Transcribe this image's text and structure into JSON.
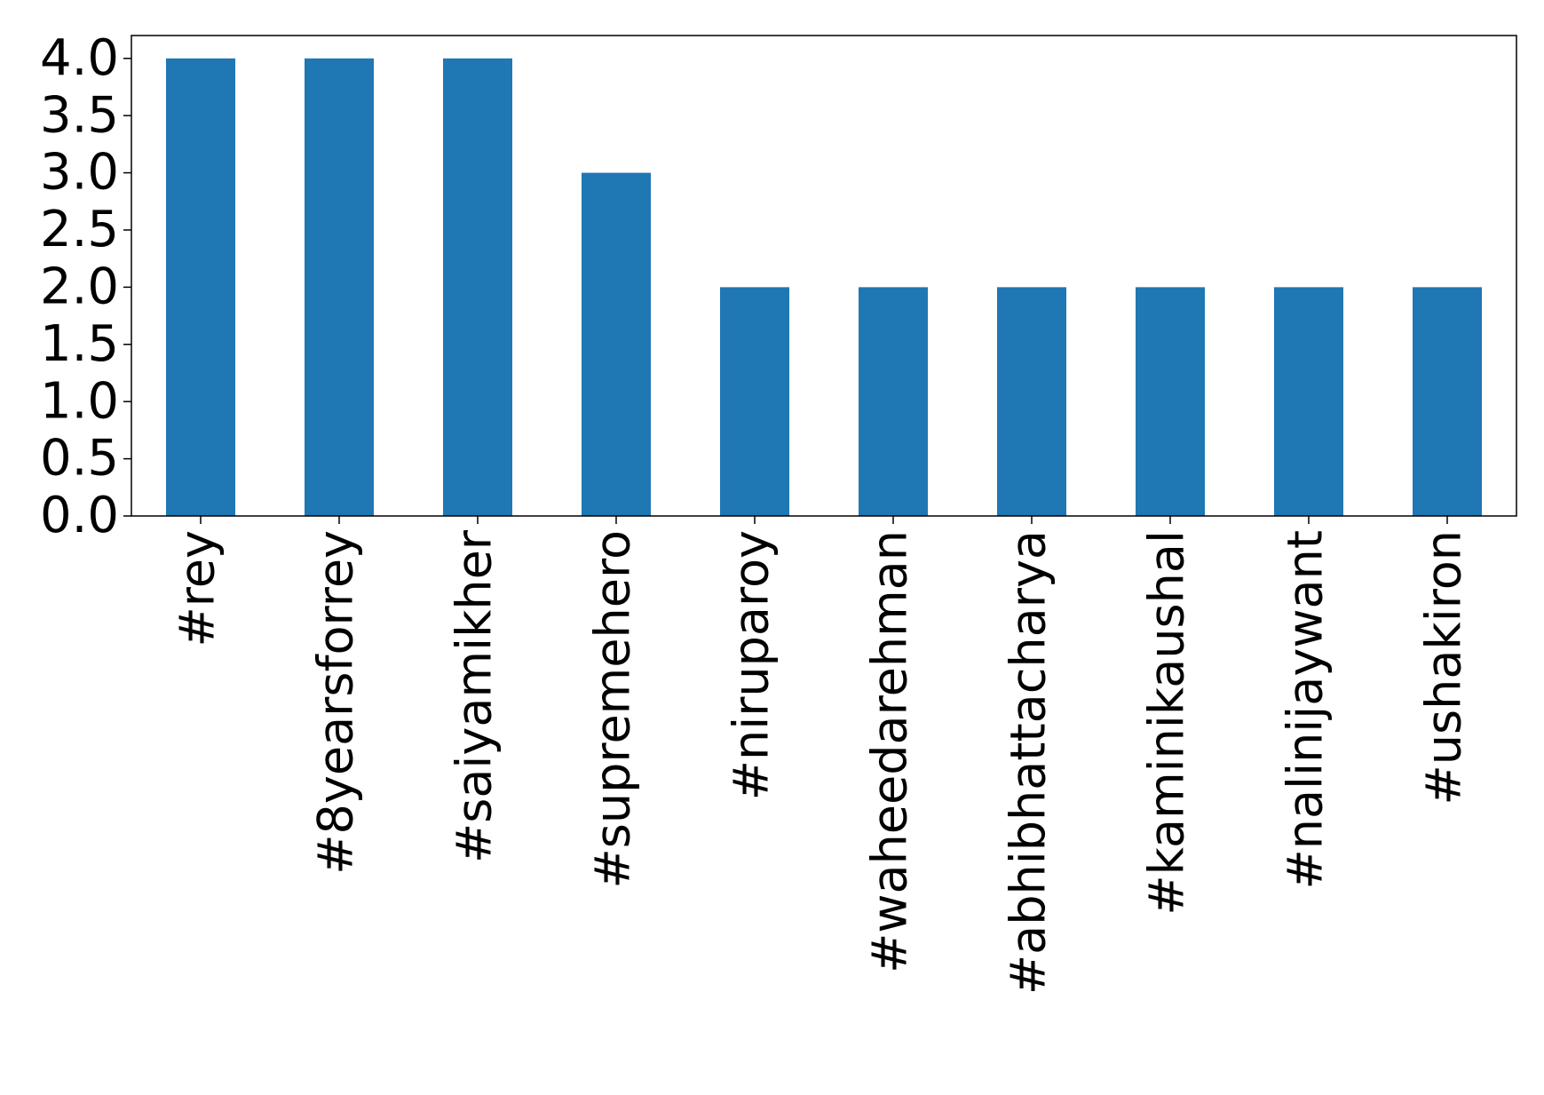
{
  "chart_data": {
    "type": "bar",
    "categories": [
      "#rey",
      "#8yearsforrey",
      "#saiyamikher",
      "#supremehero",
      "#niruparoy",
      "#waheedarehman",
      "#abhibhattacharya",
      "#kaminikaushal",
      "#nalinijaywant",
      "#ushakiron"
    ],
    "values": [
      4,
      4,
      4,
      3,
      2,
      2,
      2,
      2,
      2,
      2
    ],
    "color": "#1f77b4",
    "ylim": [
      0,
      4.2
    ],
    "yticks": [
      {
        "value": 0,
        "label": "0.0"
      },
      {
        "value": 0.5,
        "label": "0.5"
      },
      {
        "value": 1,
        "label": "1.0"
      },
      {
        "value": 1.5,
        "label": "1.5"
      },
      {
        "value": 2,
        "label": "2.0"
      },
      {
        "value": 2.5,
        "label": "2.5"
      },
      {
        "value": 3,
        "label": "3.0"
      },
      {
        "value": 3.5,
        "label": "3.5"
      },
      {
        "value": 4,
        "label": "4.0"
      }
    ],
    "grid": false
  }
}
